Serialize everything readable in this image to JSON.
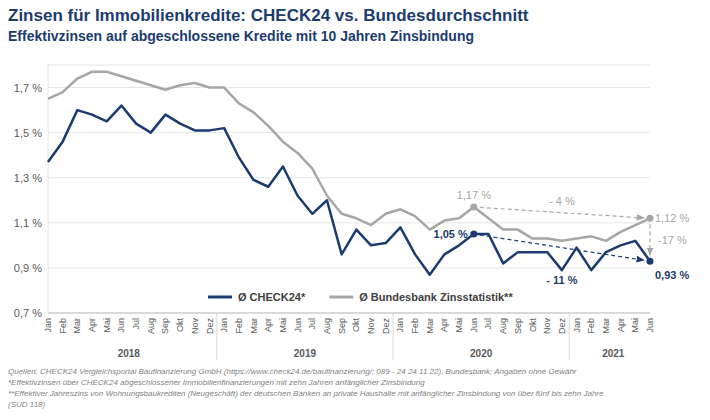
{
  "chart_data": {
    "type": "line",
    "title": "Zinsen für Immobilienkredite: CHECK24 vs. Bundesdurchschnitt",
    "subtitle": "Effektivzinsen auf abgeschlossene Kredite mit 10 Jahren Zinsbindung",
    "categories": [
      "Jan",
      "Feb",
      "Mar",
      "Apr",
      "Mai",
      "Jun",
      "Jul",
      "Aug",
      "Sep",
      "Okt",
      "Nov",
      "Dez",
      "Jan",
      "Feb",
      "Mar",
      "Apr",
      "Mai",
      "Jun",
      "Jul",
      "Aug",
      "Sep",
      "Okt",
      "Nov",
      "Dez",
      "Jan",
      "Feb",
      "Mar",
      "Apr",
      "Mai",
      "Jun",
      "Jul",
      "Aug",
      "Sep",
      "Okt",
      "Nov",
      "Dez",
      "Jan",
      "Feb",
      "Mar",
      "Apr",
      "Mai",
      "Jun"
    ],
    "year_labels": [
      "2018",
      "2019",
      "2020",
      "2021"
    ],
    "series": [
      {
        "name": "Ø CHECK24*",
        "color": "#1c3b6e",
        "values": [
          1.37,
          1.46,
          1.6,
          1.58,
          1.55,
          1.62,
          1.54,
          1.5,
          1.58,
          1.54,
          1.51,
          1.51,
          1.52,
          1.39,
          1.29,
          1.26,
          1.35,
          1.22,
          1.14,
          1.2,
          0.96,
          1.07,
          1.0,
          1.01,
          1.08,
          0.96,
          0.87,
          0.96,
          1.0,
          1.05,
          1.05,
          0.92,
          0.97,
          0.97,
          0.97,
          0.89,
          0.99,
          0.89,
          0.97,
          1.0,
          1.02,
          0.93
        ]
      },
      {
        "name": "Ø Bundesbank Zinsstatistik**",
        "color": "#a6a6a6",
        "values": [
          1.65,
          1.68,
          1.74,
          1.77,
          1.77,
          1.75,
          1.73,
          1.71,
          1.69,
          1.71,
          1.72,
          1.7,
          1.7,
          1.63,
          1.59,
          1.53,
          1.46,
          1.41,
          1.34,
          1.22,
          1.14,
          1.12,
          1.09,
          1.14,
          1.16,
          1.13,
          1.07,
          1.11,
          1.12,
          1.17,
          1.12,
          1.07,
          1.07,
          1.03,
          1.03,
          1.02,
          1.03,
          1.04,
          1.02,
          1.06,
          1.09,
          1.12
        ]
      }
    ],
    "ylim": [
      0.7,
      1.8
    ],
    "yticks": [
      {
        "value": 0.7,
        "label": "0,7 %"
      },
      {
        "value": 0.9,
        "label": "0,9 %"
      },
      {
        "value": 1.1,
        "label": "1,1 %"
      },
      {
        "value": 1.3,
        "label": "1,3 %"
      },
      {
        "value": 1.5,
        "label": "1,5 %"
      },
      {
        "value": 1.7,
        "label": "1,7 %"
      }
    ],
    "grid": true,
    "legend": "bottom",
    "point_labels": [
      {
        "series": 1,
        "index": 29,
        "text": "1,17 %"
      },
      {
        "series": 0,
        "index": 29,
        "text": "1,05 %"
      },
      {
        "series": 1,
        "index": 41,
        "text": "1,12 %"
      },
      {
        "series": 0,
        "index": 41,
        "text": "0,93 %"
      }
    ],
    "annotations": [
      {
        "text": "- 4 %",
        "series": 1,
        "from": 29,
        "to": 41
      },
      {
        "text": "- 11 %",
        "series": 0,
        "from": 29,
        "to": 41
      },
      {
        "text": "-17 %",
        "from_series": 1,
        "to_series": 0,
        "index": 41
      }
    ],
    "notes": [
      "Quellen: CHECK24 Vergleichsportal Baufinanzierung GmbH (https://www.check24.de/baufinanzierung/; 089 - 24 24 11 22), Bundesbank; Angaben ohne Gewähr",
      "*Effektivzinsen über CHECK24 abgeschlossener Immobilienfinanzierungen mit zehn Jahren anfänglicher Zinsbindung",
      "**Effektiver Jahreszins von Wohnungsbaukrediten (Neugeschäft) der deutschen Banken an private Haushalte mit anfänglicher Zinsbindung von über fünf bis zehn Jahre",
      "(SUD 118)"
    ]
  }
}
